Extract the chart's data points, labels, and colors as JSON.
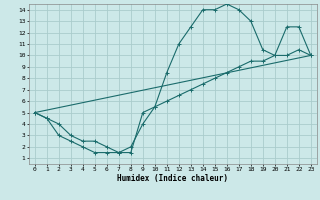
{
  "title": "",
  "xlabel": "Humidex (Indice chaleur)",
  "bg_color": "#cce8e8",
  "grid_color": "#aacccc",
  "line_color": "#1a6b6b",
  "xlim": [
    -0.5,
    23.5
  ],
  "ylim": [
    0.5,
    14.5
  ],
  "xticks": [
    0,
    1,
    2,
    3,
    4,
    5,
    6,
    7,
    8,
    9,
    10,
    11,
    12,
    13,
    14,
    15,
    16,
    17,
    18,
    19,
    20,
    21,
    22,
    23
  ],
  "yticks": [
    1,
    2,
    3,
    4,
    5,
    6,
    7,
    8,
    9,
    10,
    11,
    12,
    13,
    14
  ],
  "line1_x": [
    0,
    1,
    2,
    3,
    4,
    5,
    6,
    7,
    8,
    9,
    10,
    11,
    12,
    13,
    14,
    15,
    16,
    17,
    18,
    19,
    20,
    21,
    22,
    23
  ],
  "line1_y": [
    5,
    4.5,
    3,
    2.5,
    2,
    1.5,
    1.5,
    1.5,
    2,
    4,
    5.5,
    8.5,
    11,
    12.5,
    14,
    14,
    14.5,
    14,
    13,
    10.5,
    10,
    12.5,
    12.5,
    10
  ],
  "line2_x": [
    0,
    1,
    2,
    3,
    4,
    5,
    6,
    7,
    8,
    9,
    10,
    11,
    12,
    13,
    14,
    15,
    16,
    17,
    18,
    19,
    20,
    21,
    22,
    23
  ],
  "line2_y": [
    5,
    4.5,
    4,
    3,
    2.5,
    2.5,
    2,
    1.5,
    1.5,
    5,
    5.5,
    6,
    6.5,
    7,
    7.5,
    8,
    8.5,
    9,
    9.5,
    9.5,
    10,
    10,
    10.5,
    10
  ],
  "line3_x": [
    0,
    23
  ],
  "line3_y": [
    5,
    10
  ]
}
